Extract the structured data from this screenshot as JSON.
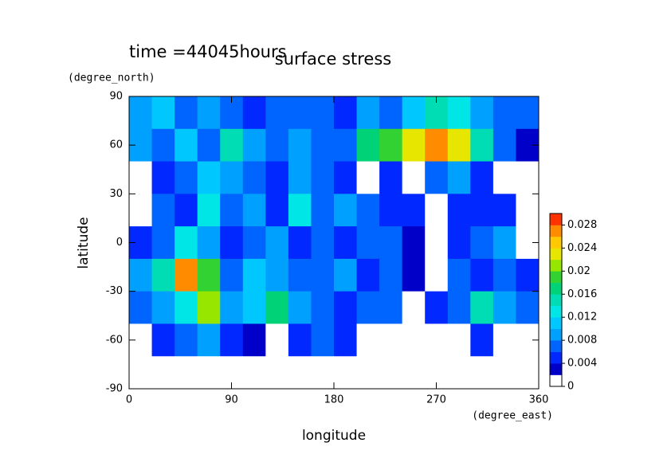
{
  "chart_data": {
    "type": "heatmap",
    "title": "surface stress",
    "subtitle": "time =44045hours",
    "x_label": "longitude",
    "y_label": "latitude",
    "x_unit": "(degree_east)",
    "y_unit": "(degree_north)",
    "x": [
      10,
      30,
      50,
      70,
      90,
      110,
      130,
      150,
      170,
      190,
      210,
      230,
      250,
      270,
      290,
      310,
      330,
      350
    ],
    "y": [
      80,
      60,
      40,
      20,
      0,
      -20,
      -40,
      -60,
      -80
    ],
    "values": [
      [
        0.008,
        0.01,
        0.006,
        0.008,
        0.006,
        0.004,
        0.006,
        0.006,
        0.006,
        0.004,
        0.008,
        0.006,
        0.01,
        0.014,
        0.012,
        0.008,
        0.006,
        0.006
      ],
      [
        0.008,
        0.006,
        0.01,
        0.006,
        0.014,
        0.008,
        0.006,
        0.008,
        0.006,
        0.006,
        0.016,
        0.018,
        0.022,
        0.026,
        0.022,
        0.014,
        0.006,
        0.002
      ],
      [
        0.001,
        0.004,
        0.006,
        0.01,
        0.008,
        0.006,
        0.004,
        0.008,
        0.006,
        0.004,
        0.001,
        0.004,
        0.001,
        0.006,
        0.008,
        0.004,
        0.001,
        0.001
      ],
      [
        0.001,
        0.006,
        0.004,
        0.012,
        0.006,
        0.008,
        0.004,
        0.012,
        0.006,
        0.008,
        0.006,
        0.004,
        0.004,
        0.001,
        0.004,
        0.004,
        0.004,
        0.001
      ],
      [
        0.004,
        0.006,
        0.012,
        0.008,
        0.004,
        0.006,
        0.008,
        0.004,
        0.006,
        0.004,
        0.006,
        0.006,
        0.002,
        0.001,
        0.004,
        0.006,
        0.008,
        0.001
      ],
      [
        0.008,
        0.014,
        0.026,
        0.018,
        0.006,
        0.01,
        0.008,
        0.006,
        0.006,
        0.008,
        0.004,
        0.006,
        0.002,
        0.001,
        0.006,
        0.004,
        0.006,
        0.004
      ],
      [
        0.006,
        0.008,
        0.012,
        0.02,
        0.008,
        0.01,
        0.016,
        0.008,
        0.006,
        0.004,
        0.006,
        0.006,
        0.001,
        0.004,
        0.006,
        0.014,
        0.008,
        0.006
      ],
      [
        0.001,
        0.004,
        0.006,
        0.008,
        0.004,
        0.002,
        0.001,
        0.004,
        0.006,
        0.004,
        0.001,
        0.001,
        0.001,
        0.001,
        0.001,
        0.004,
        0.001,
        0.001
      ],
      [
        0,
        0,
        0,
        0,
        0,
        0,
        0,
        0,
        0,
        0,
        0,
        0,
        0,
        0,
        0,
        0,
        0,
        0
      ]
    ],
    "xlim": [
      0,
      360
    ],
    "xticks": [
      0,
      90,
      180,
      270,
      360
    ],
    "ylim": [
      -90,
      90
    ],
    "yticks": [
      -90,
      -60,
      -30,
      0,
      30,
      60,
      90
    ],
    "colorbar_lim": [
      0,
      0.03
    ],
    "colorbar_ticks": [
      0,
      0.004,
      0.008,
      0.012,
      0.016,
      0.02,
      0.024,
      0.028
    ],
    "colors": [
      "#ffffff",
      "#0000c8",
      "#0028ff",
      "#0064ff",
      "#00a0ff",
      "#00c8ff",
      "#00e6e6",
      "#00dcb4",
      "#00d278",
      "#32d232",
      "#96e600",
      "#e6e600",
      "#ffc800",
      "#ff8c00",
      "#ff3200"
    ]
  }
}
